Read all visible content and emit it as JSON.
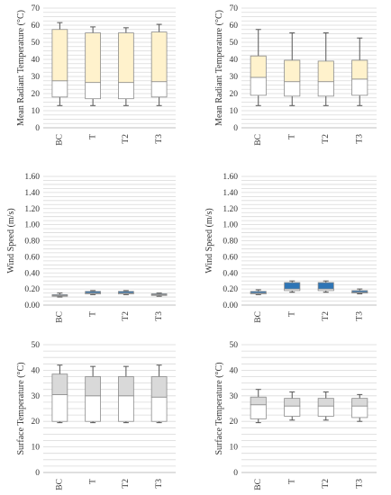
{
  "style": {
    "grid_color": "#d9d9d9",
    "axis_color": "#bfbfbf",
    "whisker_color": "#555555",
    "box_edge_color": "#8c8c8c"
  },
  "chart_data": [
    {
      "type": "boxplot",
      "ylabel": "Mean Radiant Temperature (°C)",
      "ylim": [
        0,
        70
      ],
      "yticks": [
        "0",
        "10",
        "20",
        "30",
        "40",
        "50",
        "60",
        "70"
      ],
      "grid": true,
      "categories": [
        "BC",
        "T",
        "T2",
        "T3"
      ],
      "upper_box_color": "#fff2cc",
      "lower_box_color": "#ffffff",
      "min": [
        13,
        13,
        13,
        13
      ],
      "q1": [
        18,
        17,
        17,
        18
      ],
      "median": [
        27.5,
        26.5,
        26.5,
        27
      ],
      "q3": [
        57.5,
        55.5,
        55.5,
        56
      ],
      "max": [
        61.5,
        59,
        58.5,
        60.5
      ]
    },
    {
      "type": "boxplot",
      "ylabel": "Mean Radiant Temperature (°C)",
      "ylim": [
        0,
        70
      ],
      "yticks": [
        "0",
        "10",
        "20",
        "30",
        "40",
        "50",
        "60",
        "70"
      ],
      "grid": true,
      "categories": [
        "BC",
        "T",
        "T2",
        "T3"
      ],
      "upper_box_color": "#fff2cc",
      "lower_box_color": "#ffffff",
      "min": [
        13,
        13,
        13,
        13
      ],
      "q1": [
        19,
        18.5,
        18.5,
        19
      ],
      "median": [
        29.5,
        27,
        27,
        28.5
      ],
      "q3": [
        42,
        39.5,
        39,
        39.5
      ],
      "max": [
        57.5,
        55.5,
        55.5,
        52.5
      ]
    },
    {
      "type": "boxplot",
      "ylabel": "Wind Speed (m/s)",
      "ylim": [
        0,
        1.6
      ],
      "yticks": [
        "0.00",
        "0.20",
        "0.40",
        "0.60",
        "0.80",
        "1.00",
        "1.20",
        "1.40",
        "1.60"
      ],
      "grid": true,
      "categories": [
        "BC",
        "T",
        "T2",
        "T3"
      ],
      "upper_box_color": "#2e75b6",
      "lower_box_color": "#ffffff",
      "min": [
        0.1,
        0.13,
        0.13,
        0.11
      ],
      "q1": [
        0.11,
        0.14,
        0.14,
        0.12
      ],
      "median": [
        0.12,
        0.15,
        0.15,
        0.13
      ],
      "q3": [
        0.13,
        0.17,
        0.17,
        0.14
      ],
      "max": [
        0.15,
        0.18,
        0.18,
        0.15
      ]
    },
    {
      "type": "boxplot",
      "ylabel": "Wind Speed (m/s)",
      "ylim": [
        0,
        1.6
      ],
      "yticks": [
        "0.00",
        "0.20",
        "0.40",
        "0.60",
        "0.80",
        "1.00",
        "1.20",
        "1.40",
        "1.60"
      ],
      "grid": true,
      "categories": [
        "BC",
        "T",
        "T2",
        "T3"
      ],
      "upper_box_color": "#2e75b6",
      "lower_box_color": "#ffffff",
      "min": [
        0.13,
        0.16,
        0.16,
        0.14
      ],
      "q1": [
        0.14,
        0.18,
        0.18,
        0.15
      ],
      "median": [
        0.15,
        0.2,
        0.2,
        0.16
      ],
      "q3": [
        0.17,
        0.28,
        0.28,
        0.18
      ],
      "max": [
        0.19,
        0.3,
        0.3,
        0.2
      ]
    },
    {
      "type": "boxplot",
      "ylabel": "Surface Temperature (°C)",
      "ylim": [
        0,
        50
      ],
      "yticks": [
        "0",
        "10",
        "20",
        "30",
        "40",
        "50"
      ],
      "grid": true,
      "categories": [
        "BC",
        "T",
        "T2",
        "T3"
      ],
      "upper_box_color": "#d9d9d9",
      "lower_box_color": "#ffffff",
      "min": [
        19.5,
        19.5,
        19.5,
        19.5
      ],
      "q1": [
        20,
        20,
        20,
        20
      ],
      "median": [
        30.5,
        30,
        30,
        29.5
      ],
      "q3": [
        38.5,
        37.5,
        37.5,
        37.5
      ],
      "max": [
        42,
        41.5,
        41.5,
        42
      ]
    },
    {
      "type": "boxplot",
      "ylabel": "Surface Temperature (°C)",
      "ylim": [
        0,
        50
      ],
      "yticks": [
        "0",
        "10",
        "20",
        "30",
        "40",
        "50"
      ],
      "grid": true,
      "categories": [
        "BC",
        "T",
        "T2",
        "T3"
      ],
      "upper_box_color": "#d9d9d9",
      "lower_box_color": "#ffffff",
      "min": [
        19.5,
        20.5,
        20.5,
        20
      ],
      "q1": [
        21,
        22,
        22,
        21.5
      ],
      "median": [
        26.5,
        26,
        26,
        26
      ],
      "q3": [
        29.5,
        29,
        29,
        29
      ],
      "max": [
        32.5,
        31.5,
        31.5,
        30.5
      ]
    }
  ]
}
